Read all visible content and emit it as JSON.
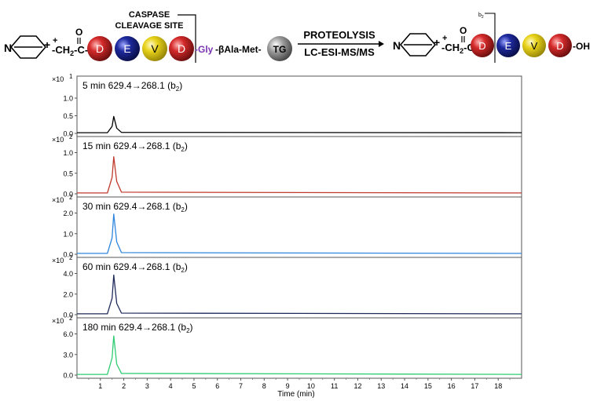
{
  "scheme": {
    "caspase_label_1": "CASPASE",
    "caspase_label_2": "CLEAVAGE SITE",
    "left_n": "N",
    "left_nplus": "+",
    "left_chain": "-CH",
    "left_chain_sub": "2",
    "left_chain_end": "-C-",
    "carbonyl_o": "O",
    "residues": [
      "D",
      "E",
      "V",
      "D"
    ],
    "gly": "-Gly",
    "linker": "-βAla-Met-",
    "tg": "TG",
    "arrow_top": "PROTEOLYSIS",
    "arrow_bottom": "LC-ESI-MS/MS",
    "right_chain": "-CH",
    "right_chain_sub": "2",
    "right_chain_end": "-C-",
    "right_end": "-OH",
    "b2_label": "b",
    "b2_sub": "2",
    "colors": {
      "D": "#d42a2a",
      "E": "#1e2a9e",
      "V": "#e8d21a",
      "TG": "#9a9a9a",
      "gly": "#7a35b0"
    }
  },
  "chart_data": [
    {
      "type": "line",
      "label": "5 min 629.4→268.1 (b",
      "label_sub": "2",
      "label_end": ")",
      "multiplier": "×10",
      "exponent": "1",
      "yticks": [
        "0.0",
        "0.5",
        "1.0"
      ],
      "ylim": [
        0,
        1.4
      ],
      "color": "#000000",
      "series": [
        {
          "x": [
            0,
            1.3,
            1.5,
            1.57,
            1.7,
            1.9,
            19
          ],
          "y": [
            0.02,
            0.02,
            0.2,
            0.48,
            0.15,
            0.03,
            0.02
          ]
        }
      ]
    },
    {
      "type": "line",
      "label": "15 min 629.4→268.1 (b",
      "label_sub": "2",
      "label_end": ")",
      "multiplier": "×10",
      "exponent": "2",
      "yticks": [
        "0.0",
        "0.5",
        "1.0"
      ],
      "ylim": [
        0,
        1.2
      ],
      "color": "#c0392b",
      "series": [
        {
          "x": [
            0,
            1.3,
            1.5,
            1.57,
            1.7,
            1.9,
            19
          ],
          "y": [
            0.02,
            0.02,
            0.4,
            0.9,
            0.3,
            0.04,
            0.02
          ]
        }
      ]
    },
    {
      "type": "line",
      "label": "30 min 629.4→268.1 (b",
      "label_sub": "2",
      "label_end": ")",
      "multiplier": "×10",
      "exponent": "2",
      "yticks": [
        "0.0",
        "1.0",
        "2.0"
      ],
      "ylim": [
        0,
        2.4
      ],
      "color": "#2e86de",
      "series": [
        {
          "x": [
            0,
            1.3,
            1.5,
            1.57,
            1.7,
            1.9,
            19
          ],
          "y": [
            0.04,
            0.04,
            0.8,
            1.95,
            0.6,
            0.08,
            0.04
          ]
        }
      ]
    },
    {
      "type": "line",
      "label": "60 min 629.4→268.1 (b",
      "label_sub": "2",
      "label_end": ")",
      "multiplier": "×10",
      "exponent": "2",
      "yticks": [
        "0.0",
        "2.0",
        "4.0"
      ],
      "ylim": [
        0,
        4.8
      ],
      "color": "#1f2a5a",
      "series": [
        {
          "x": [
            0,
            1.3,
            1.5,
            1.57,
            1.7,
            1.9,
            19
          ],
          "y": [
            0.08,
            0.08,
            1.6,
            3.85,
            1.1,
            0.15,
            0.08
          ]
        }
      ]
    },
    {
      "type": "line",
      "label": "180 min 629.4→268.1 (b",
      "label_sub": "2",
      "label_end": ")",
      "multiplier": "×10",
      "exponent": "2",
      "yticks": [
        "0.0",
        "3.0",
        "6.0"
      ],
      "ylim": [
        0,
        7.2
      ],
      "color": "#2ecc71",
      "series": [
        {
          "x": [
            0,
            1.3,
            1.5,
            1.57,
            1.7,
            1.9,
            19
          ],
          "y": [
            0.1,
            0.1,
            2.5,
            5.7,
            1.6,
            0.25,
            0.1
          ]
        }
      ]
    }
  ],
  "xaxis": {
    "ticks": [
      "1",
      "2",
      "3",
      "4",
      "5",
      "6",
      "7",
      "8",
      "9",
      "10",
      "11",
      "12",
      "13",
      "14",
      "15",
      "16",
      "17",
      "18"
    ],
    "xlim": [
      0,
      19
    ],
    "label": "Time (min)"
  }
}
